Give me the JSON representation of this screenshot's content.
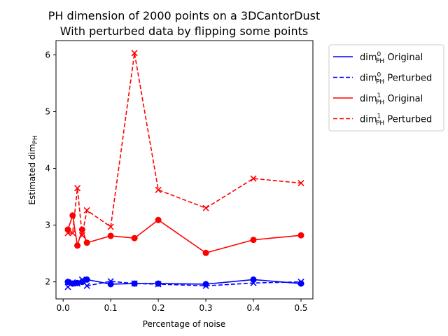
{
  "chart_data": {
    "type": "line",
    "title": "PH dimension of 2000 points on a 3DCantorDust",
    "subtitle": "With perturbed data by flipping some points",
    "xlabel": "Percentage of noise",
    "ylabel": "Estimated dim",
    "ylabel_sub": "PH",
    "xlim": [
      -0.015,
      0.525
    ],
    "ylim": [
      1.7,
      6.25
    ],
    "xticks": [
      0.0,
      0.1,
      0.2,
      0.3,
      0.4,
      0.5
    ],
    "xtick_labels": [
      "0.0",
      "0.1",
      "0.2",
      "0.3",
      "0.4",
      "0.5"
    ],
    "yticks": [
      2,
      3,
      4,
      5,
      6
    ],
    "ytick_labels": [
      "2",
      "3",
      "4",
      "5",
      "6"
    ],
    "grid": false,
    "legend_position": "outside-top-right",
    "x": [
      0.01,
      0.02,
      0.03,
      0.04,
      0.05,
      0.1,
      0.15,
      0.2,
      0.3,
      0.4,
      0.5
    ],
    "series": [
      {
        "name": "dim0 Original",
        "legend_main": "dim",
        "legend_sup": "0",
        "legend_sub": "PH",
        "legend_rest": " Original",
        "color": "#0000ff",
        "dash": "solid",
        "marker": "circle",
        "values": [
          2.0,
          1.97,
          1.98,
          2.0,
          2.04,
          1.96,
          1.97,
          1.97,
          1.96,
          2.04,
          1.97
        ]
      },
      {
        "name": "dim0 Perturbed",
        "legend_main": "dim",
        "legend_sup": "0",
        "legend_sub": "PH",
        "legend_rest": " Perturbed",
        "color": "#0000ff",
        "dash": "dashed",
        "marker": "x",
        "values": [
          1.91,
          1.99,
          1.97,
          2.04,
          1.93,
          2.01,
          1.97,
          1.96,
          1.93,
          1.98,
          2.0
        ]
      },
      {
        "name": "dim1 Original",
        "legend_main": "dim",
        "legend_sup": "1",
        "legend_sub": "PH",
        "legend_rest": " Original",
        "color": "#ff0000",
        "dash": "solid",
        "marker": "circle",
        "values": [
          2.92,
          3.17,
          2.64,
          2.92,
          2.69,
          2.81,
          2.77,
          3.09,
          2.51,
          2.74,
          2.82
        ]
      },
      {
        "name": "dim1 Perturbed",
        "legend_main": "dim",
        "legend_sup": "1",
        "legend_sub": "PH",
        "legend_rest": " Perturbed",
        "color": "#ff0000",
        "dash": "dashed",
        "marker": "x",
        "values": [
          2.86,
          2.86,
          3.65,
          2.82,
          3.26,
          2.97,
          6.03,
          3.62,
          3.3,
          3.82,
          3.74
        ]
      }
    ]
  }
}
